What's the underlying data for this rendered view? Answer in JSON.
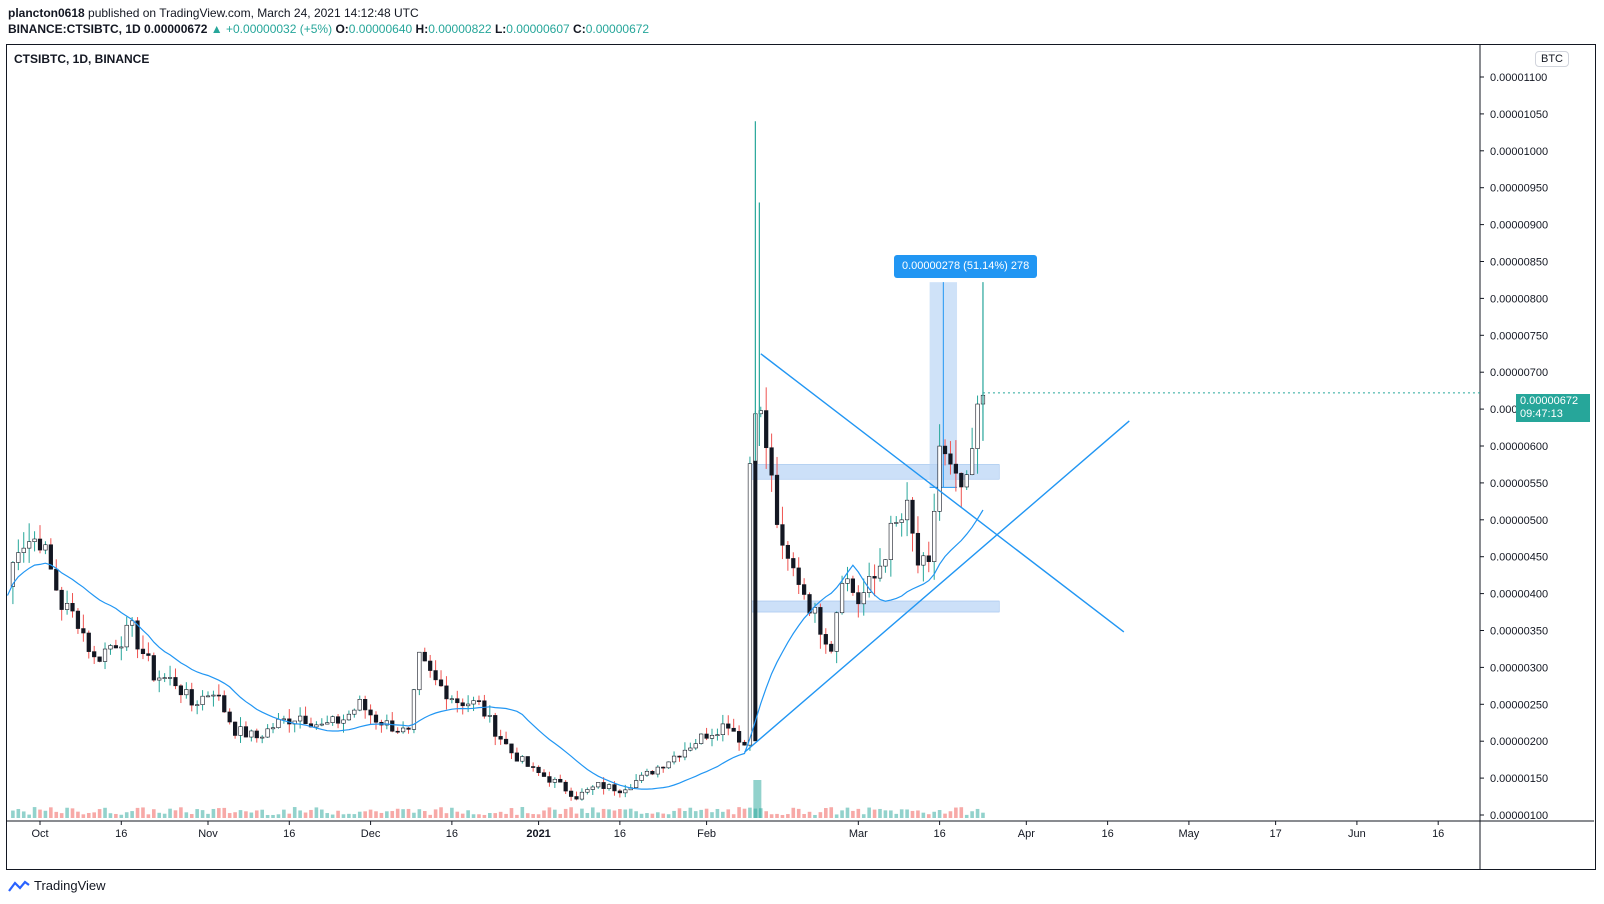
{
  "header": {
    "user": "plancton0618",
    "published": " published on TradingView.com, March 24, 2021 14:12:48 UTC",
    "symbol": "BINANCE:CTSIBTC, 1D",
    "last": "0.00000672",
    "change": "+0.00000032 (+5%)",
    "o_label": "O:",
    "o": "0.00000640",
    "h_label": "H:",
    "h": "0.00000822",
    "l_label": "L:",
    "l": "0.00000607",
    "c_label": "C:",
    "c": "0.00000672"
  },
  "chart_title": "CTSIBTC, 1D, BINANCE",
  "currency_button": "BTC",
  "current_price": {
    "price": "0.00000672",
    "countdown": "09:47:13"
  },
  "measure_label": "0.00000278 (51.14%) 278",
  "footer": {
    "brand": "TradingView"
  },
  "colors": {
    "up": "#26a69a",
    "down": "#ef5350",
    "ma": "#2196f3",
    "line": "#2196f3",
    "zone": "#bbd5f5"
  },
  "chart_data": {
    "type": "candlestick",
    "y_unit": "BTC",
    "ylim": [
      9.5e-07,
      1.135e-05
    ],
    "y_ticks": [
      "0.00001100",
      "0.00001050",
      "0.00001000",
      "0.00000950",
      "0.00000900",
      "0.00000850",
      "0.00000800",
      "0.00000750",
      "0.00000700",
      "0.00000650",
      "0.00000600",
      "0.00000550",
      "0.00000500",
      "0.00000450",
      "0.00000400",
      "0.00000350",
      "0.00000300",
      "0.00000250",
      "0.00000200",
      "0.00000150",
      "0.00000100"
    ],
    "x_ticks": [
      {
        "label": "Oct",
        "date": "2020-10-01",
        "bold": false
      },
      {
        "label": "16",
        "date": "2020-10-16",
        "bold": false
      },
      {
        "label": "Nov",
        "date": "2020-11-01",
        "bold": false
      },
      {
        "label": "16",
        "date": "2020-11-16",
        "bold": false
      },
      {
        "label": "Dec",
        "date": "2020-12-01",
        "bold": false
      },
      {
        "label": "16",
        "date": "2020-12-16",
        "bold": false
      },
      {
        "label": "2021",
        "date": "2021-01-01",
        "bold": true
      },
      {
        "label": "16",
        "date": "2021-01-16",
        "bold": false
      },
      {
        "label": "Feb",
        "date": "2021-02-01",
        "bold": false
      },
      {
        "label": "Mar",
        "date": "2021-03-01",
        "bold": false
      },
      {
        "label": "16",
        "date": "2021-03-16",
        "bold": false
      },
      {
        "label": "Apr",
        "date": "2021-04-01",
        "bold": false
      },
      {
        "label": "16",
        "date": "2021-04-16",
        "bold": false
      },
      {
        "label": "May",
        "date": "2021-05-01",
        "bold": false
      },
      {
        "label": "17",
        "date": "2021-05-17",
        "bold": false
      },
      {
        "label": "Jun",
        "date": "2021-06-01",
        "bold": false
      },
      {
        "label": "16",
        "date": "2021-06-16",
        "bold": false
      }
    ],
    "closes": [
      {
        "date": "2020-09-25",
        "close": 4.1e-06
      },
      {
        "date": "2020-09-27",
        "close": 4.7e-06
      },
      {
        "date": "2020-10-01",
        "close": 4.75e-06
      },
      {
        "date": "2020-10-03",
        "close": 4.3e-06
      },
      {
        "date": "2020-10-05",
        "close": 3.85e-06
      },
      {
        "date": "2020-10-08",
        "close": 3.65e-06
      },
      {
        "date": "2020-10-11",
        "close": 3.1e-06
      },
      {
        "date": "2020-10-14",
        "close": 3.3e-06
      },
      {
        "date": "2020-10-18",
        "close": 3.5e-06
      },
      {
        "date": "2020-10-22",
        "close": 2.9e-06
      },
      {
        "date": "2020-10-26",
        "close": 2.8e-06
      },
      {
        "date": "2020-10-29",
        "close": 2.5e-06
      },
      {
        "date": "2020-11-02",
        "close": 2.7e-06
      },
      {
        "date": "2020-11-06",
        "close": 2.15e-06
      },
      {
        "date": "2020-11-10",
        "close": 2.05e-06
      },
      {
        "date": "2020-11-14",
        "close": 2.25e-06
      },
      {
        "date": "2020-11-18",
        "close": 2.35e-06
      },
      {
        "date": "2020-11-22",
        "close": 2.2e-06
      },
      {
        "date": "2020-11-26",
        "close": 2.3e-06
      },
      {
        "date": "2020-11-29",
        "close": 2.5e-06
      },
      {
        "date": "2020-12-02",
        "close": 2.3e-06
      },
      {
        "date": "2020-12-05",
        "close": 2.2e-06
      },
      {
        "date": "2020-12-08",
        "close": 2.1e-06
      },
      {
        "date": "2020-12-10",
        "close": 3.1e-06
      },
      {
        "date": "2020-12-13",
        "close": 2.8e-06
      },
      {
        "date": "2020-12-17",
        "close": 2.55e-06
      },
      {
        "date": "2020-12-21",
        "close": 2.5e-06
      },
      {
        "date": "2020-12-24",
        "close": 2.15e-06
      },
      {
        "date": "2020-12-27",
        "close": 1.85e-06
      },
      {
        "date": "2020-12-31",
        "close": 1.6e-06
      },
      {
        "date": "2021-01-04",
        "close": 1.45e-06
      },
      {
        "date": "2021-01-08",
        "close": 1.25e-06
      },
      {
        "date": "2021-01-12",
        "close": 1.4e-06
      },
      {
        "date": "2021-01-16",
        "close": 1.35e-06
      },
      {
        "date": "2021-01-20",
        "close": 1.5e-06
      },
      {
        "date": "2021-01-24",
        "close": 1.7e-06
      },
      {
        "date": "2021-01-28",
        "close": 1.9e-06
      },
      {
        "date": "2021-02-01",
        "close": 2.1e-06
      },
      {
        "date": "2021-02-05",
        "close": 2.25e-06
      },
      {
        "date": "2021-02-08",
        "close": 1.95e-06
      },
      {
        "date": "2021-02-09",
        "close": 5.8e-06
      },
      {
        "date": "2021-02-10",
        "close": 6.7e-06
      },
      {
        "date": "2021-02-12",
        "close": 6e-06
      },
      {
        "date": "2021-02-15",
        "close": 4.5e-06
      },
      {
        "date": "2021-02-18",
        "close": 4.2e-06
      },
      {
        "date": "2021-02-21",
        "close": 3.7e-06
      },
      {
        "date": "2021-02-24",
        "close": 3.3e-06
      },
      {
        "date": "2021-02-26",
        "close": 4.3e-06
      },
      {
        "date": "2021-03-01",
        "close": 3.9e-06
      },
      {
        "date": "2021-03-04",
        "close": 4.2e-06
      },
      {
        "date": "2021-03-07",
        "close": 4.8e-06
      },
      {
        "date": "2021-03-10",
        "close": 5.1e-06
      },
      {
        "date": "2021-03-12",
        "close": 4.4e-06
      },
      {
        "date": "2021-03-14",
        "close": 4.3e-06
      },
      {
        "date": "2021-03-16",
        "close": 6e-06
      },
      {
        "date": "2021-03-17",
        "close": 5.8e-06
      },
      {
        "date": "2021-03-19",
        "close": 5.45e-06
      },
      {
        "date": "2021-03-21",
        "close": 5.4e-06
      },
      {
        "date": "2021-03-23",
        "close": 6.4e-06
      },
      {
        "date": "2021-03-24",
        "close": 6.72e-06
      }
    ],
    "peak_wick": {
      "date": "2021-02-10",
      "high": 1.04e-05
    },
    "last_bar": {
      "date": "2021-03-24",
      "open": 6.4e-06,
      "high": 8.22e-06,
      "low": 6.07e-06,
      "close": 6.72e-06
    },
    "zones": [
      {
        "price_low": 5.55e-06,
        "price_high": 5.75e-06,
        "from": "2021-02-09",
        "to": "2021-03-27"
      },
      {
        "price_low": 3.75e-06,
        "price_high": 3.9e-06,
        "from": "2021-02-09",
        "to": "2021-03-27"
      }
    ],
    "trendlines": [
      {
        "from_date": "2021-02-11",
        "from_price": 7.25e-06,
        "to_date": "2021-04-19",
        "to_price": 3.48e-06
      },
      {
        "from_date": "2021-02-08",
        "from_price": 1.85e-06,
        "to_date": "2021-04-20",
        "to_price": 6.34e-06
      }
    ],
    "measure": {
      "from_date": "2021-03-16",
      "to_date": "2021-03-17",
      "from_price": 5.44e-06,
      "to_price": 8.22e-06
    }
  }
}
